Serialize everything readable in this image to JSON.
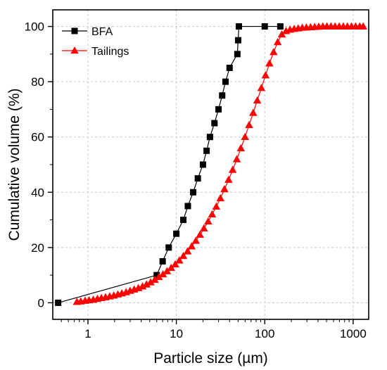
{
  "chart_data": {
    "type": "scatter",
    "xlabel": "Particle size (µm)",
    "ylabel": "Cumulative volume (%)",
    "x_scale": "log",
    "xlim": [
      0.4,
      1500
    ],
    "ylim": [
      -6,
      106
    ],
    "x_ticks": [
      1,
      10,
      100,
      1000
    ],
    "x_tick_labels": [
      "1",
      "10",
      "100",
      "1000"
    ],
    "y_ticks": [
      0,
      20,
      40,
      60,
      80,
      100
    ],
    "y_tick_labels": [
      "0",
      "20",
      "40",
      "60",
      "80",
      "100"
    ],
    "grid": true,
    "legend_position": "top-left",
    "series": [
      {
        "name": "BFA",
        "color": "#000000",
        "marker": "square",
        "x": [
          0.46,
          6.0,
          7.0,
          8.2,
          10.0,
          12.0,
          13.5,
          15.5,
          17.5,
          20.0,
          22.0,
          24.0,
          27.0,
          30.0,
          33.0,
          36.0,
          40.0,
          49.0,
          50.0,
          51.0,
          100.0,
          150.0
        ],
        "y": [
          0,
          10,
          15,
          20,
          25,
          30,
          35,
          40,
          45,
          50,
          55,
          60,
          65,
          70,
          75,
          80,
          85,
          90,
          95,
          100,
          100,
          100
        ]
      },
      {
        "name": "Tailings",
        "color": "#ff0000",
        "marker": "triangle",
        "x": [
          0.75,
          0.83,
          0.93,
          1.03,
          1.15,
          1.28,
          1.42,
          1.58,
          1.76,
          1.96,
          2.18,
          2.42,
          2.7,
          3.0,
          3.34,
          3.72,
          4.14,
          4.6,
          5.12,
          5.7,
          6.34,
          7.06,
          7.85,
          8.74,
          9.72,
          10.8,
          12.0,
          13.4,
          14.9,
          16.6,
          18.5,
          20.5,
          22.9,
          25.4,
          28.3,
          31.5,
          35.0,
          39.0,
          43.4,
          48.3,
          53.7,
          59.8,
          66.5,
          74.0,
          82.3,
          91.6,
          102,
          113,
          126,
          140,
          156,
          174,
          193,
          215,
          239,
          266,
          296,
          330,
          367,
          408,
          454,
          505,
          562,
          625,
          696,
          774,
          861,
          958,
          1066,
          1186,
          1300
        ],
        "y": [
          0.3,
          0.5,
          0.7,
          0.9,
          1.1,
          1.4,
          1.7,
          2.0,
          2.3,
          2.6,
          3.0,
          3.4,
          3.8,
          4.3,
          4.8,
          5.3,
          5.9,
          6.6,
          7.4,
          8.3,
          9.3,
          10.3,
          11.4,
          12.6,
          13.9,
          15.3,
          16.9,
          18.6,
          20.4,
          22.4,
          24.6,
          26.9,
          29.4,
          32.0,
          34.8,
          37.8,
          41.1,
          44.5,
          48.1,
          51.9,
          55.9,
          60.0,
          64.3,
          68.7,
          73.2,
          77.7,
          82.3,
          86.6,
          90.7,
          94.3,
          97.1,
          98.3,
          98.8,
          99.1,
          99.3,
          99.5,
          99.6,
          99.7,
          99.8,
          99.9,
          100,
          100,
          100,
          100,
          100,
          100,
          100,
          100,
          100,
          100,
          100
        ]
      }
    ]
  }
}
